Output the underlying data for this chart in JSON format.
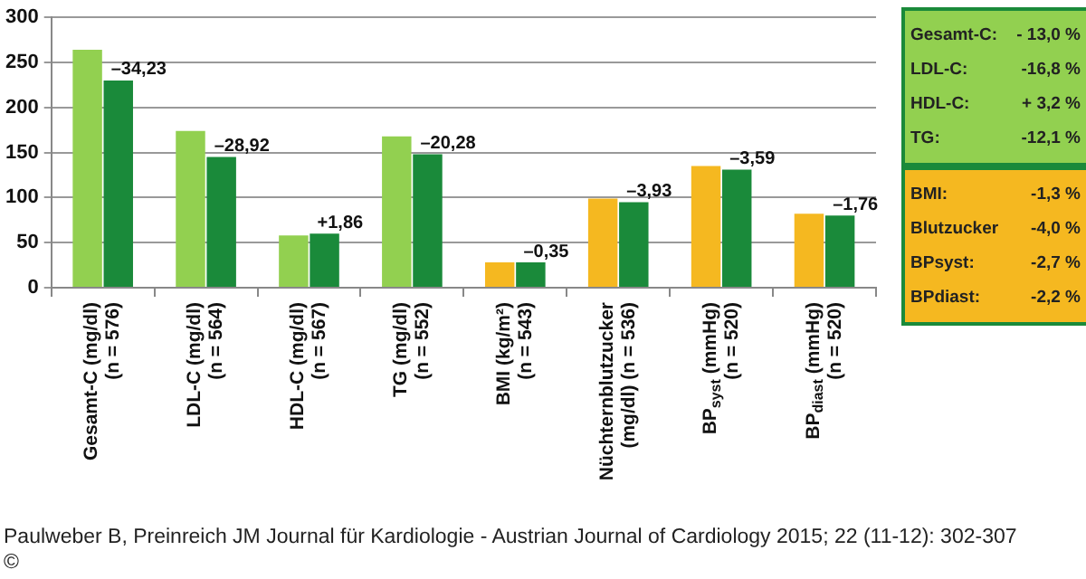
{
  "chart_data": [
    {
      "type": "bar",
      "categories": [
        "Gesamt-C (mg/dl)\n(n = 576)",
        "LDL-C (mg/dl)\n(n = 564)",
        "HDL-C (mg/dl)\n(n = 567)",
        "TG (mg/dl)\n(n = 552)",
        "BMI (kg/m²)\n(n = 543)",
        "Nüchternblutzucker\n(mg/dl) (n = 536)",
        "BP$_{syst}$ (mmHg)\n(n = 520)",
        "BP$_{diast}$ (mmHg)\n(n = 520)"
      ],
      "series": [
        {
          "colors": [
            "#92d050",
            "#92d050",
            "#92d050",
            "#92d050",
            "#f5b820",
            "#f5b820",
            "#f5b820",
            "#f5b820"
          ],
          "values": [
            264,
            174,
            58,
            168,
            28,
            99,
            135,
            82
          ]
        },
        {
          "color": "#1a8a3a",
          "values": [
            230,
            145,
            60,
            148,
            28,
            95,
            131,
            80
          ]
        }
      ],
      "ylim": [
        0,
        300
      ],
      "yticks": [
        0,
        50,
        100,
        150,
        200,
        250,
        300
      ],
      "grid": "y",
      "legend": false,
      "annotations": [
        {
          "text": "–34,23",
          "x": "Gesamt-C (mg/dl)\n(n = 576)",
          "y": 230
        },
        {
          "text": "–28,92",
          "x": "LDL-C (mg/dl)\n(n = 564)",
          "y": 145
        },
        {
          "text": "+1,86",
          "x": "HDL-C (mg/dl)\n(n = 567)",
          "y": 60
        },
        {
          "text": "–20,28",
          "x": "TG (mg/dl)\n(n = 552)",
          "y": 148
        },
        {
          "text": "–0,35",
          "x": "BMI (kg/m²)\n(n = 543)",
          "y": 28
        },
        {
          "text": "–3,93",
          "x": "Nüchternblutzucker\n(mg/dl) (n = 536)",
          "y": 95
        },
        {
          "text": "–3,59",
          "x": "BP$_{syst}$ (mmHg)\n(n = 520)",
          "y": 131
        },
        {
          "text": "–1,76",
          "x": "BP$_{diast}$ (mmHg)\n(n = 520)",
          "y": 80
        },
        "Paulweber B, Preinreich JM Journal für Kardiologie - Austrian Journal of Cardiology 2015; 22 (11-12): 302-307",
        "©"
      ]
    },
    {
      "type": "other",
      "annotations": [
        "Gesamt-C:",
        "- 13,0 %",
        "LDL-C:",
        "-16,8 %",
        "HDL-C:",
        "+ 3,2 %",
        "TG:",
        "-12,1 %"
      ]
    },
    {
      "type": "other",
      "annotations": [
        "BMI:",
        "-1,3 %",
        "Blutzucker",
        "-4,0 %",
        "BPsyst:",
        "-2,7 %",
        "BPdiast:",
        "-2,2 %"
      ]
    }
  ]
}
